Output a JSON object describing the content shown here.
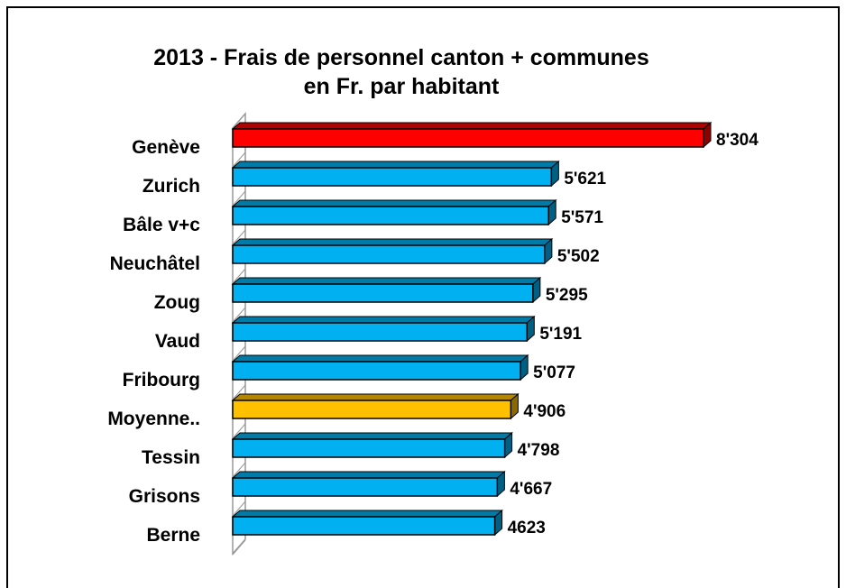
{
  "chart_data": {
    "type": "bar3d",
    "title": [
      "2013 - Frais de personnel canton + communes",
      "en Fr. par habitant"
    ],
    "categories": [
      "Genève",
      "Zurich",
      "Bâle v+c",
      "Neuchâtel",
      "Zoug",
      "Vaud",
      "Fribourg",
      "Moyenne..",
      "Tessin",
      "Grisons",
      "Berne"
    ],
    "values": [
      8304,
      5621,
      5571,
      5502,
      5295,
      5191,
      5077,
      4906,
      4798,
      4667,
      4623
    ],
    "value_labels": [
      "8'304",
      "5'621",
      "5'571",
      "5'502",
      "5'295",
      "5'191",
      "5'077",
      "4'906",
      "4'798",
      "4'667",
      "4623"
    ],
    "colors": [
      "#ff0000",
      "#00b0f0",
      "#00b0f0",
      "#00b0f0",
      "#00b0f0",
      "#00b0f0",
      "#00b0f0",
      "#ffc000",
      "#00b0f0",
      "#00b0f0",
      "#00b0f0"
    ]
  }
}
